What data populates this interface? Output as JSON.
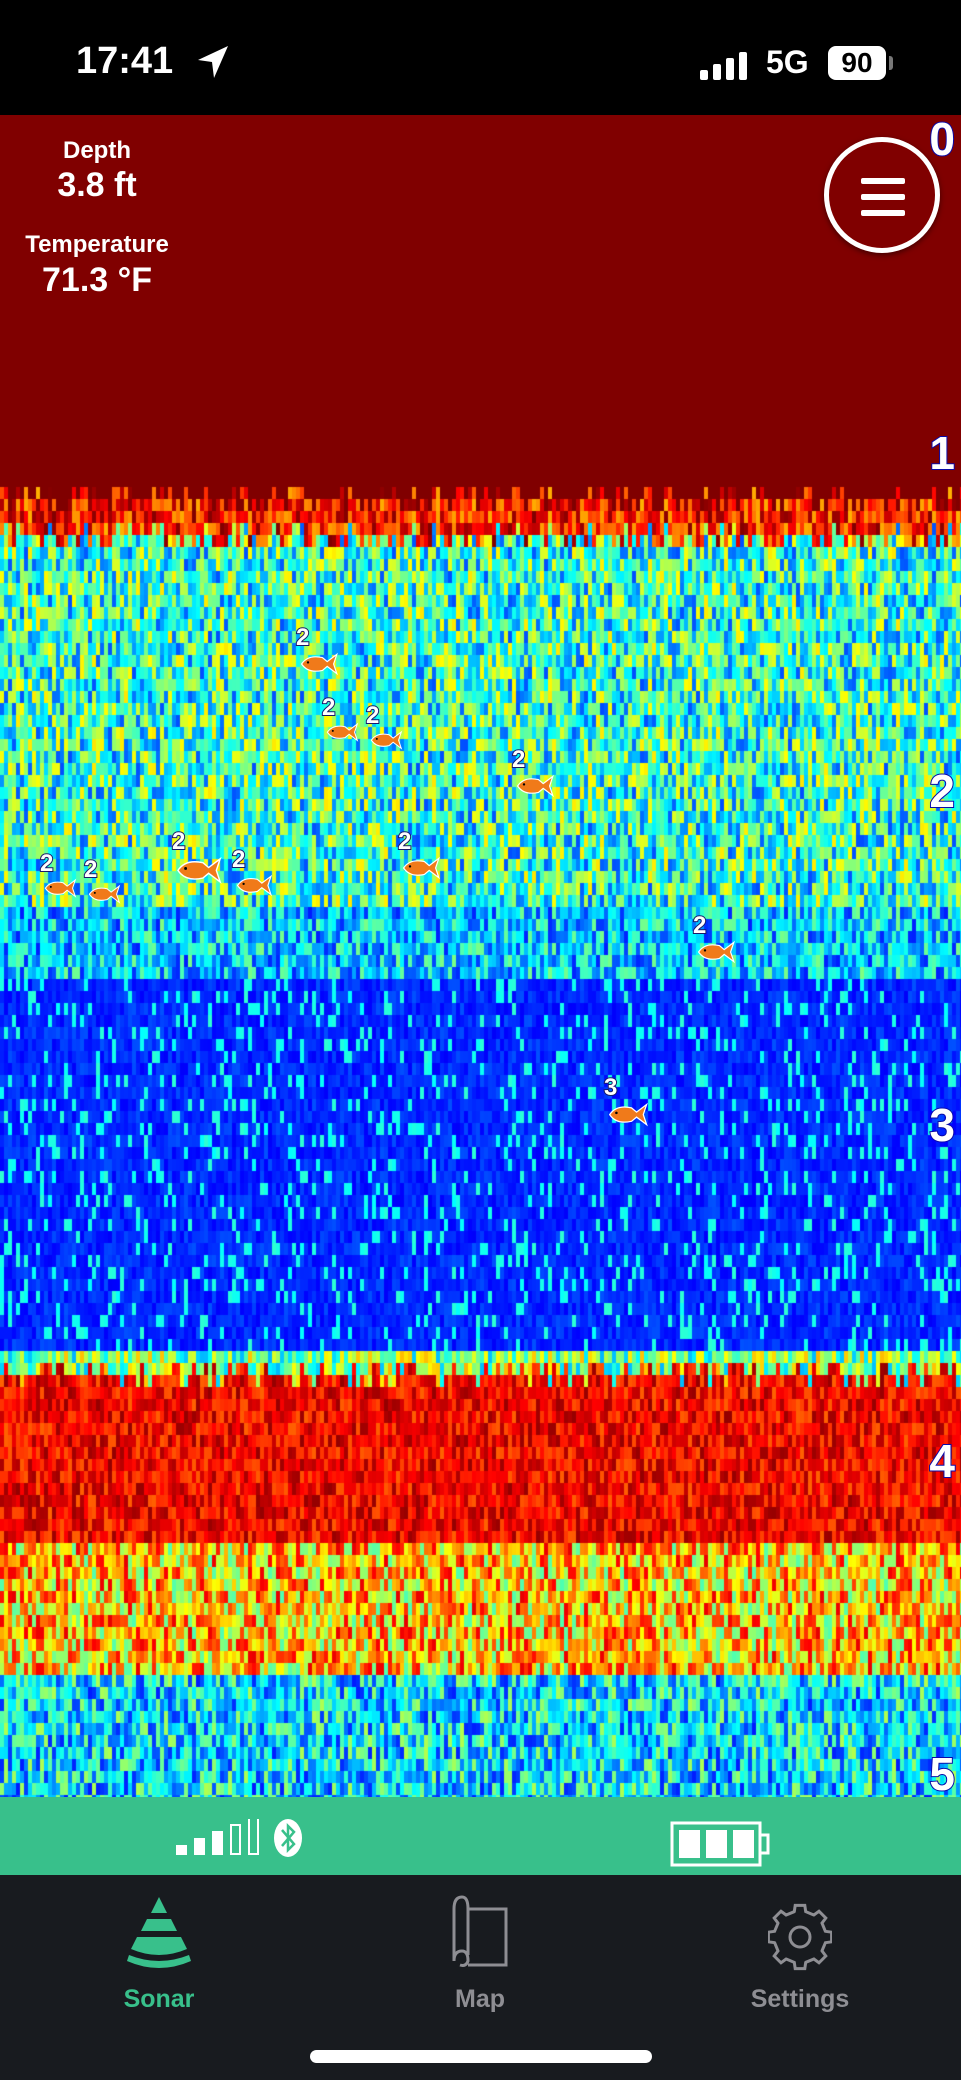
{
  "status_bar": {
    "time": "17:41",
    "network": "5G",
    "battery": "90"
  },
  "readouts": {
    "depth_label": "Depth",
    "depth_value": "3.8 ft",
    "temp_label": "Temperature",
    "temp_value": "71.3 °F"
  },
  "depth_scale": [
    "0",
    "1",
    "2",
    "3",
    "4",
    "5"
  ],
  "fish": [
    {
      "count": "2"
    },
    {
      "count": "2"
    },
    {
      "count": "2"
    },
    {
      "count": "2"
    },
    {
      "count": "2"
    },
    {
      "count": "2"
    },
    {
      "count": "2"
    },
    {
      "count": "2"
    },
    {
      "count": "2"
    },
    {
      "count": "2"
    },
    {
      "count": "3"
    }
  ],
  "device": {
    "signal_bars": 3,
    "signal_max": 5,
    "bluetooth": "bluetooth-icon",
    "battery_bars": 3
  },
  "tabs": [
    {
      "label": "Sonar",
      "icon": "sonar-icon",
      "active": true
    },
    {
      "label": "Map",
      "icon": "map-icon"
    },
    {
      "label": "Settings",
      "icon": "gear-icon"
    }
  ],
  "colors": {
    "accent": "#38c08b",
    "tab_bg": "#181b1f",
    "inactive": "#8e8e93",
    "sonar_top": "#800000"
  }
}
